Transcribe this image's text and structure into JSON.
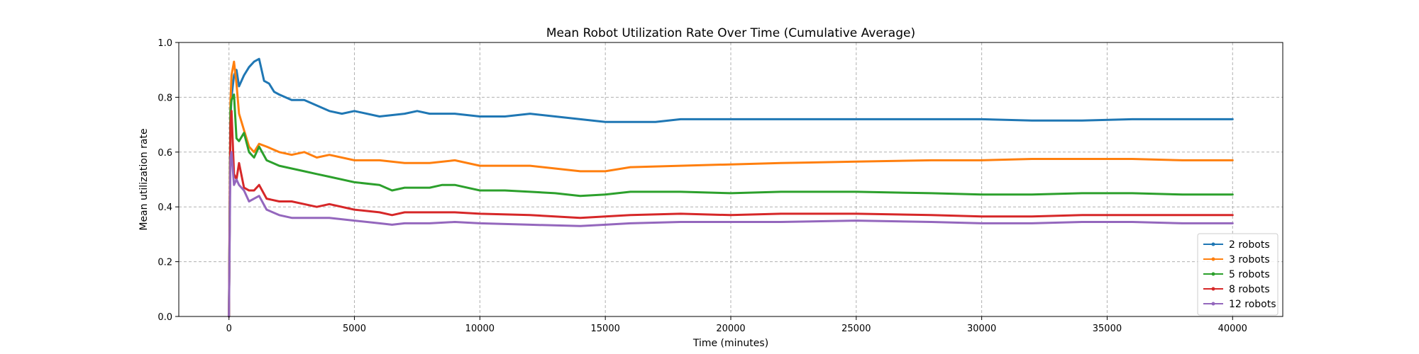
{
  "chart_data": {
    "type": "line",
    "title": "Mean Robot Utilization Rate Over Time (Cumulative Average)",
    "xlabel": "Time (minutes)",
    "ylabel": "Mean utilization rate",
    "xlim": [
      -2000,
      42000
    ],
    "ylim": [
      0.0,
      1.0
    ],
    "xticks": [
      0,
      5000,
      10000,
      15000,
      20000,
      25000,
      30000,
      35000,
      40000
    ],
    "xtick_labels": [
      "0",
      "5000",
      "10000",
      "15000",
      "20000",
      "25000",
      "30000",
      "35000",
      "40000"
    ],
    "yticks": [
      0.0,
      0.2,
      0.4,
      0.6,
      0.8,
      1.0
    ],
    "ytick_labels": [
      "0.0",
      "0.2",
      "0.4",
      "0.6",
      "0.8",
      "1.0"
    ],
    "grid": true,
    "legend_position": "lower-right",
    "series": [
      {
        "name": "2 robots",
        "color": "#1f77b4",
        "x": [
          0,
          60,
          100,
          200,
          300,
          400,
          600,
          800,
          1000,
          1200,
          1400,
          1600,
          1800,
          2000,
          2500,
          3000,
          3500,
          4000,
          4500,
          5000,
          6000,
          7000,
          7500,
          8000,
          9000,
          10000,
          11000,
          12000,
          13000,
          14000,
          15000,
          16000,
          17000,
          18000,
          20000,
          22000,
          25000,
          28000,
          30000,
          32000,
          34000,
          36000,
          38000,
          40000
        ],
        "y": [
          0.0,
          0.72,
          0.8,
          0.88,
          0.9,
          0.84,
          0.88,
          0.91,
          0.93,
          0.94,
          0.86,
          0.85,
          0.82,
          0.81,
          0.79,
          0.79,
          0.77,
          0.75,
          0.74,
          0.75,
          0.73,
          0.74,
          0.75,
          0.74,
          0.74,
          0.73,
          0.73,
          0.74,
          0.73,
          0.72,
          0.71,
          0.71,
          0.71,
          0.72,
          0.72,
          0.72,
          0.72,
          0.72,
          0.72,
          0.715,
          0.715,
          0.72,
          0.72,
          0.72
        ]
      },
      {
        "name": "3 robots",
        "color": "#ff7f0e",
        "x": [
          0,
          60,
          100,
          200,
          300,
          400,
          600,
          800,
          1000,
          1200,
          1500,
          2000,
          2500,
          3000,
          3500,
          4000,
          5000,
          6000,
          7000,
          8000,
          9000,
          10000,
          11000,
          12000,
          13000,
          14000,
          15000,
          16000,
          18000,
          20000,
          22000,
          25000,
          28000,
          30000,
          32000,
          34000,
          36000,
          38000,
          40000
        ],
        "y": [
          0.0,
          0.78,
          0.88,
          0.93,
          0.85,
          0.74,
          0.68,
          0.62,
          0.6,
          0.63,
          0.62,
          0.6,
          0.59,
          0.6,
          0.58,
          0.59,
          0.57,
          0.57,
          0.56,
          0.56,
          0.57,
          0.55,
          0.55,
          0.55,
          0.54,
          0.53,
          0.53,
          0.545,
          0.55,
          0.555,
          0.56,
          0.565,
          0.57,
          0.57,
          0.575,
          0.575,
          0.575,
          0.57,
          0.57
        ]
      },
      {
        "name": "5 robots",
        "color": "#2ca02c",
        "x": [
          0,
          60,
          100,
          200,
          300,
          400,
          600,
          800,
          1000,
          1200,
          1500,
          2000,
          2500,
          3000,
          3500,
          4000,
          5000,
          6000,
          6500,
          7000,
          8000,
          8500,
          9000,
          10000,
          11000,
          12000,
          13000,
          14000,
          15000,
          16000,
          18000,
          20000,
          22000,
          25000,
          28000,
          30000,
          32000,
          34000,
          36000,
          38000,
          40000
        ],
        "y": [
          0.0,
          0.75,
          0.79,
          0.81,
          0.65,
          0.64,
          0.67,
          0.6,
          0.58,
          0.62,
          0.57,
          0.55,
          0.54,
          0.53,
          0.52,
          0.51,
          0.49,
          0.48,
          0.46,
          0.47,
          0.47,
          0.48,
          0.48,
          0.46,
          0.46,
          0.455,
          0.45,
          0.44,
          0.445,
          0.455,
          0.455,
          0.45,
          0.455,
          0.455,
          0.45,
          0.445,
          0.445,
          0.45,
          0.45,
          0.445,
          0.445
        ]
      },
      {
        "name": "8 robots",
        "color": "#d62728",
        "x": [
          0,
          60,
          100,
          200,
          300,
          400,
          600,
          800,
          1000,
          1200,
          1500,
          2000,
          2500,
          3000,
          3500,
          4000,
          5000,
          6000,
          6500,
          7000,
          8000,
          9000,
          10000,
          12000,
          14000,
          15000,
          16000,
          18000,
          20000,
          22000,
          25000,
          28000,
          30000,
          32000,
          34000,
          36000,
          38000,
          40000
        ],
        "y": [
          0.0,
          0.7,
          0.75,
          0.52,
          0.5,
          0.56,
          0.47,
          0.46,
          0.46,
          0.48,
          0.43,
          0.42,
          0.42,
          0.41,
          0.4,
          0.41,
          0.39,
          0.38,
          0.37,
          0.38,
          0.38,
          0.38,
          0.375,
          0.37,
          0.36,
          0.365,
          0.37,
          0.375,
          0.37,
          0.375,
          0.375,
          0.37,
          0.365,
          0.365,
          0.37,
          0.37,
          0.37,
          0.37
        ]
      },
      {
        "name": "12 robots",
        "color": "#9467bd",
        "x": [
          0,
          60,
          100,
          200,
          300,
          400,
          600,
          800,
          1000,
          1200,
          1500,
          2000,
          2500,
          3000,
          3500,
          4000,
          5000,
          6000,
          6500,
          7000,
          8000,
          9000,
          10000,
          12000,
          14000,
          15000,
          16000,
          18000,
          20000,
          22000,
          25000,
          28000,
          30000,
          32000,
          34000,
          36000,
          38000,
          40000
        ],
        "y": [
          0.0,
          0.58,
          0.6,
          0.48,
          0.5,
          0.48,
          0.46,
          0.42,
          0.43,
          0.44,
          0.39,
          0.37,
          0.36,
          0.36,
          0.36,
          0.36,
          0.35,
          0.34,
          0.335,
          0.34,
          0.34,
          0.345,
          0.34,
          0.335,
          0.33,
          0.335,
          0.34,
          0.345,
          0.345,
          0.345,
          0.35,
          0.345,
          0.34,
          0.34,
          0.345,
          0.345,
          0.34,
          0.34
        ]
      }
    ]
  }
}
